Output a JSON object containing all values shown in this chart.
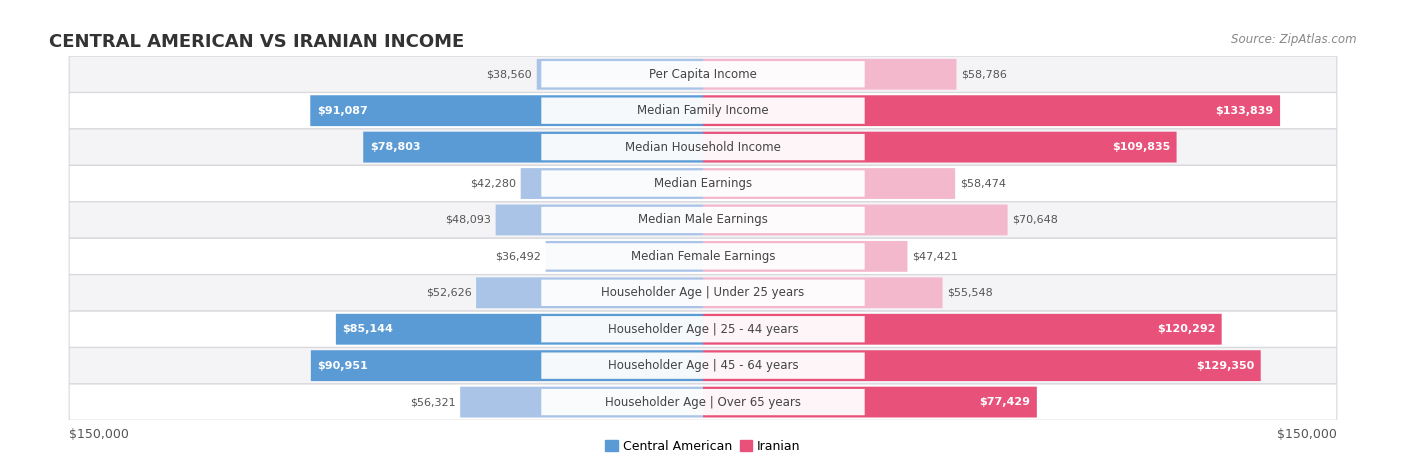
{
  "title": "CENTRAL AMERICAN VS IRANIAN INCOME",
  "source": "Source: ZipAtlas.com",
  "categories": [
    "Per Capita Income",
    "Median Family Income",
    "Median Household Income",
    "Median Earnings",
    "Median Male Earnings",
    "Median Female Earnings",
    "Householder Age | Under 25 years",
    "Householder Age | 25 - 44 years",
    "Householder Age | 45 - 64 years",
    "Householder Age | Over 65 years"
  ],
  "central_american": [
    38560,
    91087,
    78803,
    42280,
    48093,
    36492,
    52626,
    85144,
    90951,
    56321
  ],
  "iranian": [
    58786,
    133839,
    109835,
    58474,
    70648,
    47421,
    55548,
    120292,
    129350,
    77429
  ],
  "max_val": 150000,
  "bar_color_ca_light": "#aac4e8",
  "bar_color_ca_dark": "#5b9bd5",
  "bar_color_ir_light": "#f4b8cc",
  "bar_color_ir_dark": "#e8527a",
  "ca_dark_threshold": 75000,
  "ir_dark_threshold": 75000,
  "row_bg_alt1": "#f4f4f6",
  "row_bg_alt2": "#ffffff",
  "row_border": "#d8d8dd",
  "legend_color_ca": "#5b9bd5",
  "legend_color_ir": "#e8527a",
  "xlabel_left": "$150,000",
  "xlabel_right": "$150,000",
  "title_fontsize": 13,
  "source_fontsize": 8.5,
  "bar_label_fontsize": 8,
  "category_fontsize": 8.5,
  "axis_label_fontsize": 9,
  "legend_fontsize": 9,
  "figwidth": 14.06,
  "figheight": 4.67,
  "dpi": 100
}
